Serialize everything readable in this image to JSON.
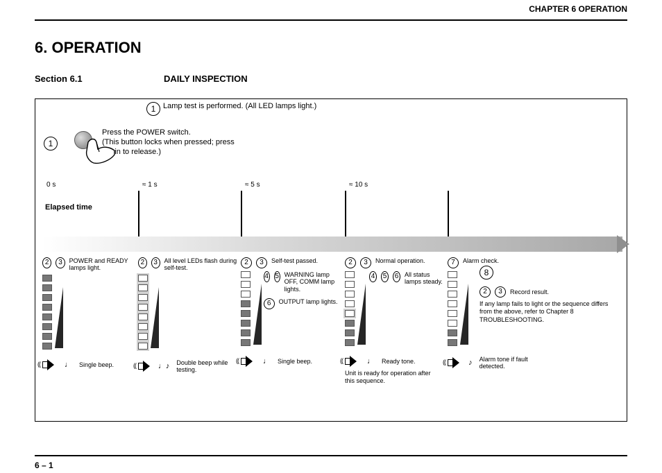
{
  "header_right": "CHAPTER 6  OPERATION",
  "chapter_title": "6.  OPERATION",
  "section_label": "Section 6.1",
  "section_title": "DAILY INSPECTION",
  "page_number": "6 – 1",
  "top_circle_num": "1",
  "top_note": "Lamp test is performed. (All LED lamps light.)",
  "press_circle": "1",
  "press_note_line1": "Press the POWER switch.",
  "press_note_line2": "(This button locks when pressed; press again to release.)",
  "axis_label_text": "Elapsed time",
  "stages": [
    {
      "time": "0 s",
      "row1_nums": [
        "2",
        "3"
      ],
      "row1_text": "POWER and READY lamps light.",
      "seg_states": [
        "on",
        "on",
        "on",
        "on",
        "on",
        "on",
        "on",
        "on"
      ],
      "tri": true,
      "speaker_notes": "♩",
      "speaker_text": "Single beep.",
      "extra": ""
    },
    {
      "time": "≈ 1 s",
      "row1_nums": [
        "2",
        "3"
      ],
      "row1_text": "All level LEDs flash during self-test.",
      "seg_states": [
        "flash",
        "flash",
        "flash",
        "flash",
        "flash",
        "flash",
        "flash",
        "flash"
      ],
      "tri": true,
      "speaker_notes": "♩♪",
      "speaker_text": "Double beep while testing.",
      "extra": ""
    },
    {
      "time": "≈ 5 s",
      "row1_nums": [
        "2",
        "3"
      ],
      "row1_text": "Self-test passed.",
      "row2_nums": [
        "4",
        "5"
      ],
      "row2_text": "WARNING lamp OFF, COMM lamp lights.",
      "row3_num": "6",
      "row3_text": "OUTPUT lamp lights.",
      "seg_states": [
        "off",
        "off",
        "off",
        "on",
        "on",
        "on",
        "on",
        "on"
      ],
      "tri": true,
      "speaker_notes": "♩",
      "speaker_text": "Single beep.",
      "extra": ""
    },
    {
      "time": "≈ 10 s",
      "row1_nums": [
        "2",
        "3"
      ],
      "row1_text": "Normal operation.",
      "row2_nums": [
        "4",
        "5",
        "6"
      ],
      "row2_text": "All status lamps steady.",
      "seg_states": [
        "off",
        "off",
        "off",
        "off",
        "flash",
        "on",
        "on",
        "on"
      ],
      "tri": true,
      "speaker_notes": "♩",
      "speaker_text": "Ready tone.",
      "extra": "Unit is ready for operation after this sequence."
    },
    {
      "time": "",
      "row1_nums": [
        "7"
      ],
      "row1_text": "Alarm check.",
      "seg_states": [
        "off",
        "off",
        "off",
        "off",
        "off",
        "off",
        "on",
        "on"
      ],
      "tri": true,
      "speaker_notes": "♪",
      "speaker_text": "Alarm tone if fault detected.",
      "extra": ""
    }
  ],
  "end_circle": "8",
  "end_row1_nums": [
    "2",
    "3"
  ],
  "end_row1_text": "Record result.",
  "end_row2_text": "If any lamp fails to light or the sequence differs from the above, refer to Chapter 8 TROUBLESHOOTING."
}
